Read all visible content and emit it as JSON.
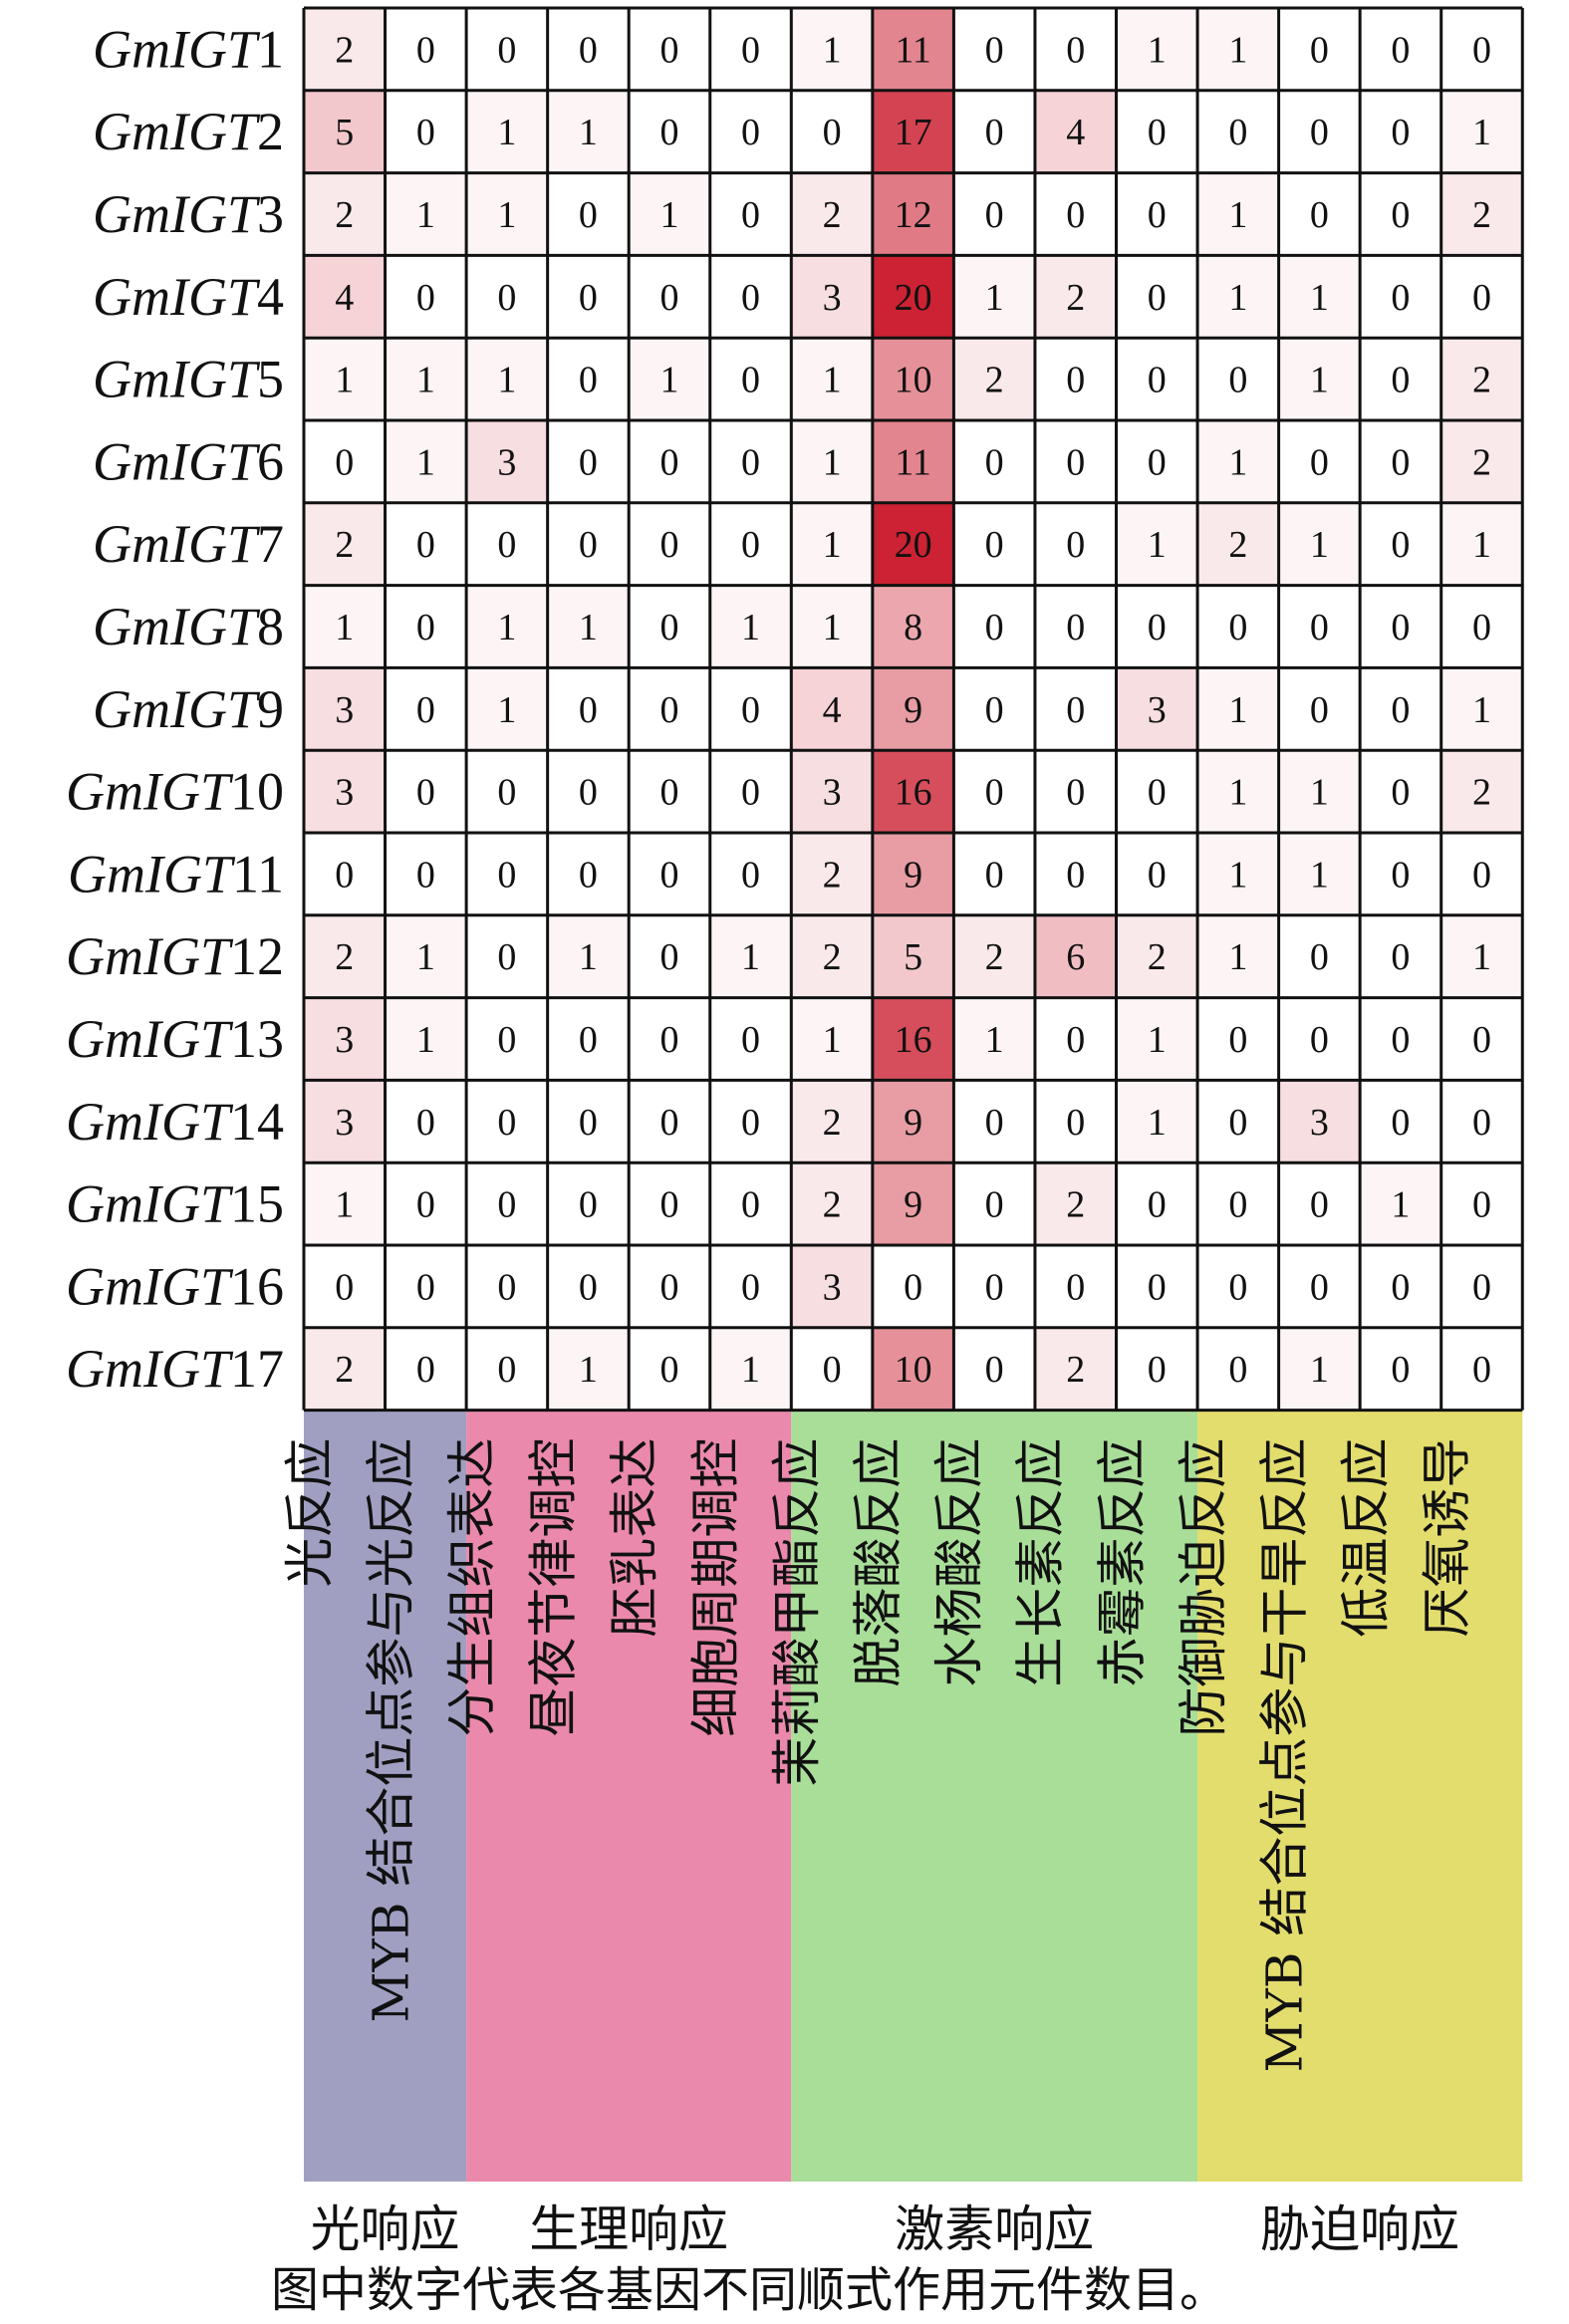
{
  "chart_data": {
    "type": "heatmap",
    "rows": [
      {
        "prefix": "GmIGT",
        "num": "1"
      },
      {
        "prefix": "GmIGT",
        "num": "2"
      },
      {
        "prefix": "GmIGT",
        "num": "3"
      },
      {
        "prefix": "GmIGT",
        "num": "4"
      },
      {
        "prefix": "GmIGT",
        "num": "5"
      },
      {
        "prefix": "GmIGT",
        "num": "6"
      },
      {
        "prefix": "GmIGT",
        "num": "7"
      },
      {
        "prefix": "GmIGT",
        "num": "8"
      },
      {
        "prefix": "GmIGT",
        "num": "9"
      },
      {
        "prefix": "GmIGT",
        "num": "10"
      },
      {
        "prefix": "GmIGT",
        "num": "11"
      },
      {
        "prefix": "GmIGT",
        "num": "12"
      },
      {
        "prefix": "GmIGT",
        "num": "13"
      },
      {
        "prefix": "GmIGT",
        "num": "14"
      },
      {
        "prefix": "GmIGT",
        "num": "15"
      },
      {
        "prefix": "GmIGT",
        "num": "16"
      },
      {
        "prefix": "GmIGT",
        "num": "17"
      }
    ],
    "columns": [
      {
        "label": "光反应",
        "group": 0
      },
      {
        "label": "MYB 结合位点参与光反应",
        "group": 0
      },
      {
        "label": "分生组织表达",
        "group": 1
      },
      {
        "label": "昼夜节律调控",
        "group": 1
      },
      {
        "label": "胚乳表达",
        "group": 1
      },
      {
        "label": "细胞周期调控",
        "group": 1
      },
      {
        "label": "茉莉酸甲酯反应",
        "group": 2
      },
      {
        "label": "脱落酸反应",
        "group": 2
      },
      {
        "label": "水杨酸反应",
        "group": 2
      },
      {
        "label": "生长素反应",
        "group": 2
      },
      {
        "label": "赤霉素反应",
        "group": 2
      },
      {
        "label": "防御胁迫反应",
        "group": 3
      },
      {
        "label": "MYB 结合位点参与干旱反应",
        "group": 3
      },
      {
        "label": "低温反应",
        "group": 3
      },
      {
        "label": "厌氧诱导",
        "group": 3
      }
    ],
    "groups": [
      {
        "label": "光响应",
        "color": "#a09fc2"
      },
      {
        "label": "生理响应",
        "color": "#ea89ab"
      },
      {
        "label": "激素响应",
        "color": "#a9de99"
      },
      {
        "label": "胁迫响应",
        "color": "#e3dd6e"
      }
    ],
    "values": [
      [
        2,
        0,
        0,
        0,
        0,
        0,
        1,
        11,
        0,
        0,
        1,
        1,
        0,
        0,
        0
      ],
      [
        5,
        0,
        1,
        1,
        0,
        0,
        0,
        17,
        0,
        4,
        0,
        0,
        0,
        0,
        1
      ],
      [
        2,
        1,
        1,
        0,
        1,
        0,
        2,
        12,
        0,
        0,
        0,
        1,
        0,
        0,
        2
      ],
      [
        4,
        0,
        0,
        0,
        0,
        0,
        3,
        20,
        1,
        2,
        0,
        1,
        1,
        0,
        0
      ],
      [
        1,
        1,
        1,
        0,
        1,
        0,
        1,
        10,
        2,
        0,
        0,
        0,
        1,
        0,
        2
      ],
      [
        0,
        1,
        3,
        0,
        0,
        0,
        1,
        11,
        0,
        0,
        0,
        1,
        0,
        0,
        2
      ],
      [
        2,
        0,
        0,
        0,
        0,
        0,
        1,
        20,
        0,
        0,
        1,
        2,
        1,
        0,
        1
      ],
      [
        1,
        0,
        1,
        1,
        0,
        1,
        1,
        8,
        0,
        0,
        0,
        0,
        0,
        0,
        0
      ],
      [
        3,
        0,
        1,
        0,
        0,
        0,
        4,
        9,
        0,
        0,
        3,
        1,
        0,
        0,
        1
      ],
      [
        3,
        0,
        0,
        0,
        0,
        0,
        3,
        16,
        0,
        0,
        0,
        1,
        1,
        0,
        2
      ],
      [
        0,
        0,
        0,
        0,
        0,
        0,
        2,
        9,
        0,
        0,
        0,
        1,
        1,
        0,
        0
      ],
      [
        2,
        1,
        0,
        1,
        0,
        1,
        2,
        5,
        2,
        6,
        2,
        1,
        0,
        0,
        1
      ],
      [
        3,
        1,
        0,
        0,
        0,
        0,
        1,
        16,
        1,
        0,
        1,
        0,
        0,
        0,
        0
      ],
      [
        3,
        0,
        0,
        0,
        0,
        0,
        2,
        9,
        0,
        0,
        1,
        0,
        3,
        0,
        0
      ],
      [
        1,
        0,
        0,
        0,
        0,
        0,
        2,
        9,
        0,
        2,
        0,
        0,
        0,
        1,
        0
      ],
      [
        0,
        0,
        0,
        0,
        0,
        0,
        3,
        0,
        0,
        0,
        0,
        0,
        0,
        0,
        0
      ],
      [
        2,
        0,
        0,
        1,
        0,
        1,
        0,
        10,
        0,
        2,
        0,
        0,
        1,
        0,
        0
      ]
    ],
    "color_scale": {
      "min": 0,
      "max": 20,
      "low": "#ffffff",
      "high": "#cc2233"
    },
    "footnote": "图中数字代表各基因不同顺式作用元件数目。"
  }
}
